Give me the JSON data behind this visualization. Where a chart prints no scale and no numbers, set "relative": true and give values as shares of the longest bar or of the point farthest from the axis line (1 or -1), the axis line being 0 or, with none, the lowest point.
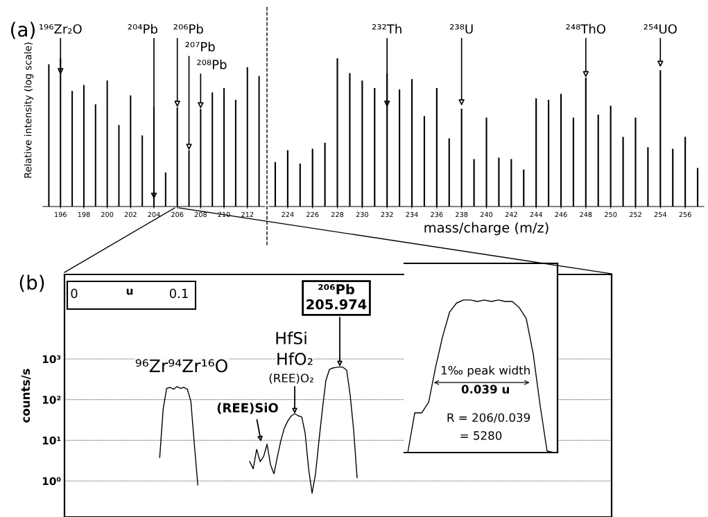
{
  "chart_data": [
    {
      "type": "bar",
      "relative": true,
      "x": [
        195,
        196,
        197,
        198,
        199,
        200,
        201,
        202,
        203,
        204,
        205,
        206,
        207,
        208,
        209,
        210,
        211,
        212,
        213
      ],
      "values": [
        0.96,
        1,
        0.78,
        0.82,
        0.69,
        0.85,
        0.55,
        0.75,
        0.48,
        0.67,
        0.23,
        0.67,
        0.38,
        0.66,
        0.77,
        0.8,
        0.72,
        0.94,
        0.88
      ],
      "color": "#000000",
      "xlim": [
        194.5,
        213.5
      ],
      "xticks": [
        196,
        198,
        200,
        202,
        204,
        206,
        208,
        210,
        212
      ],
      "ylabel": "Relative intensity (log scale)",
      "tick_labels": "x",
      "annotations": [
        "(a)",
        {
          "text": "¹⁹⁶Zr₂O",
          "x": 196,
          "y": 0.89
        },
        {
          "text": "²⁰⁴Pb",
          "x": 204,
          "y": 0.05
        },
        {
          "text": "²⁰⁶Pb",
          "x": 206,
          "y": 0.67
        },
        {
          "text": "²⁰⁷Pb",
          "x": 207,
          "y": 0.38
        },
        {
          "text": "²⁰⁸Pb",
          "x": 208,
          "y": 0.66
        }
      ]
    },
    {
      "type": "bar",
      "relative": true,
      "x": [
        223,
        224,
        225,
        226,
        227,
        228,
        229,
        230,
        231,
        232,
        233,
        234,
        235,
        236,
        237,
        238,
        239,
        240,
        241,
        242,
        243,
        244,
        245,
        246,
        247,
        248,
        249,
        250,
        251,
        252,
        253,
        254,
        255,
        256,
        257
      ],
      "values": [
        0.3,
        0.38,
        0.29,
        0.39,
        0.43,
        1.0,
        0.9,
        0.85,
        0.8,
        0.9,
        0.79,
        0.86,
        0.61,
        0.8,
        0.46,
        0.66,
        0.32,
        0.6,
        0.33,
        0.32,
        0.25,
        0.73,
        0.72,
        0.76,
        0.6,
        0.87,
        0.62,
        0.68,
        0.47,
        0.6,
        0.4,
        0.92,
        0.39,
        0.47,
        0.26
      ],
      "color": "#000000",
      "xlim": [
        222.5,
        257.5
      ],
      "xticks": [
        224,
        226,
        228,
        230,
        232,
        234,
        236,
        238,
        240,
        242,
        244,
        246,
        248,
        250,
        252,
        254,
        256
      ],
      "xlabel": "mass/charge (m/z)",
      "tick_labels": "x",
      "annotations": [
        {
          "text": "²³²Th",
          "x": 232,
          "y": 0.67
        },
        {
          "text": "²³⁸U",
          "x": 238,
          "y": 0.68
        },
        {
          "text": "²⁴⁸ThO",
          "x": 248,
          "y": 0.87
        },
        {
          "text": "²⁵⁴UO",
          "x": 254,
          "y": 0.94
        }
      ]
    },
    {
      "type": "line",
      "log": "y",
      "ylim": [
        0.13,
        120000
      ],
      "yticks": [
        {
          "value": 1,
          "label": "10⁰"
        },
        {
          "value": 10,
          "label": "10¹"
        },
        {
          "value": 100,
          "label": "10²"
        },
        {
          "value": 1000,
          "label": "10³"
        }
      ],
      "ylabel": "counts/s",
      "grid": "y",
      "tick_labels": "y",
      "color": "#000000",
      "categories": [
        null,
        null,
        null,
        null,
        null,
        null,
        null,
        null,
        null,
        null,
        null,
        null,
        null,
        null,
        null,
        null,
        null,
        null,
        null,
        null,
        null,
        null,
        null,
        null,
        null,
        null,
        null,
        null,
        null,
        null,
        null,
        null,
        null,
        null,
        null,
        null,
        null,
        null,
        null,
        null,
        null,
        null,
        null,
        null,
        null,
        null,
        null,
        null,
        null,
        null,
        null,
        null,
        null,
        null,
        null,
        null,
        null,
        null,
        null,
        null,
        null,
        null,
        null,
        null,
        null,
        null,
        null,
        null,
        null,
        null,
        null,
        null,
        null,
        null,
        null,
        null,
        null,
        null,
        null,
        null,
        null,
        null,
        null,
        null,
        null,
        null,
        null,
        null,
        null,
        null,
        null,
        null,
        null,
        null,
        null,
        null,
        null,
        null,
        null,
        null,
        null,
        null,
        null,
        null,
        null,
        null,
        null,
        null,
        null,
        null,
        null,
        null,
        null,
        null,
        null,
        null,
        null,
        null,
        null,
        null,
        null,
        null,
        null,
        null,
        null,
        null,
        null,
        null,
        null,
        null,
        null,
        null,
        null,
        null,
        null,
        null,
        null,
        null,
        null,
        null,
        null,
        null,
        null,
        null,
        null,
        null,
        null,
        null,
        null,
        null,
        null,
        null,
        null,
        null,
        null,
        null,
        null,
        null
      ],
      "values": [
        null,
        null,
        null,
        null,
        null,
        null,
        null,
        null,
        null,
        null,
        null,
        null,
        null,
        null,
        null,
        null,
        null,
        null,
        null,
        null,
        null,
        null,
        null,
        null,
        null,
        null,
        null,
        3.8,
        59,
        190,
        200,
        180,
        210,
        190,
        200,
        180,
        90,
        8,
        0.8,
        null,
        null,
        null,
        null,
        null,
        null,
        null,
        null,
        null,
        null,
        null,
        null,
        null,
        null,
        3,
        2,
        6,
        3,
        4,
        8,
        2.5,
        1.5,
        4,
        10,
        20,
        30,
        40,
        45,
        40,
        38,
        15,
        2,
        0.5,
        1.5,
        10,
        60,
        300,
        550,
        600,
        620,
        640,
        620,
        530,
        130,
        18,
        1.2,
        null,
        null,
        null,
        null,
        null,
        null,
        null,
        null,
        null,
        null,
        null,
        null,
        null,
        null,
        null,
        null,
        null,
        null,
        null,
        null,
        null,
        null,
        null,
        null,
        null,
        null,
        null,
        null,
        null,
        null,
        null,
        null,
        null,
        null,
        null,
        null,
        null,
        null,
        null,
        null,
        null,
        null,
        null,
        null,
        null,
        null,
        null,
        null,
        null,
        null,
        null,
        null,
        null,
        null,
        null,
        null,
        null,
        null,
        null,
        null,
        null,
        null,
        null,
        null,
        null,
        null,
        null,
        null,
        null,
        null,
        null,
        null,
        null
      ],
      "annotations": [
        "(b)",
        "0",
        "u",
        "0.1",
        "⁹⁶Zr⁹⁴Zr¹⁶O",
        "HfSi",
        "HfO₂",
        {
          "text": "(REE)O₂",
          "y": 45
        },
        "(REE)SiO",
        {
          "text": "²⁰⁶Pb\n205.974",
          "y": 650
        }
      ]
    },
    {
      "type": "line",
      "relative": true,
      "tick_labels": false,
      "color": "#000000",
      "categories": [
        null,
        null,
        null,
        null,
        null,
        null,
        null,
        null,
        null,
        null,
        null,
        null,
        null,
        null,
        null,
        null,
        null,
        null,
        null,
        null,
        null,
        null
      ],
      "values": [
        0,
        0.26,
        0.26,
        0.33,
        0.56,
        0.76,
        0.92,
        0.98,
        1.0,
        1.0,
        0.99,
        1.0,
        0.99,
        1.0,
        0.99,
        0.99,
        0.95,
        0.88,
        0.65,
        0.31,
        0.01,
        0
      ],
      "annotations": [
        "1‰ peak width",
        "0.039 u",
        "R = 206/0.039",
        "= 5280"
      ]
    }
  ]
}
